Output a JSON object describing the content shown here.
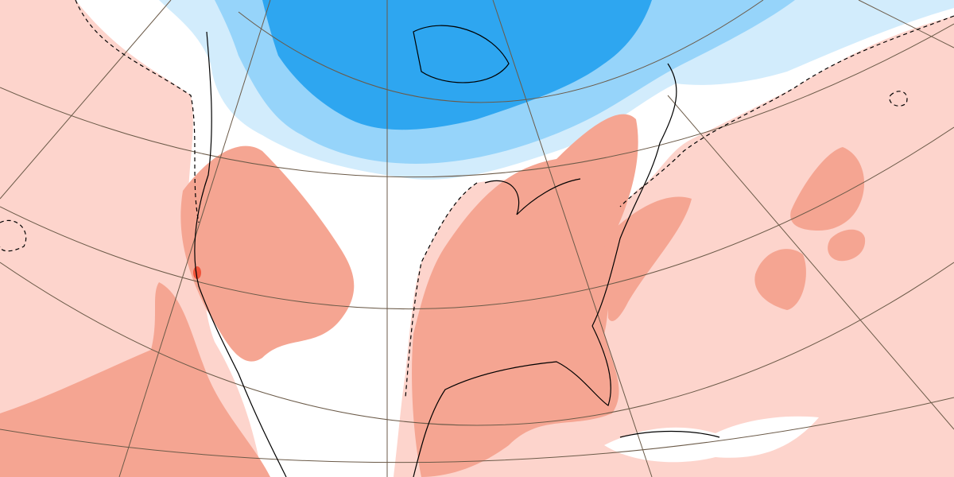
{
  "map": {
    "type": "temperature-anomaly-map",
    "projection": "polar-stereographic",
    "region": "North America",
    "colors": {
      "background": "#fdd4cc",
      "neutral": "#ffffff",
      "warm_light": "#fdd4cc",
      "warm_medium": "#f5a592",
      "warm_strong": "#f0533a",
      "cold_light": "#d2ecfc",
      "cold_medium": "#96d4fa",
      "cold_strong": "#2ea6f0",
      "coastline": "#000000",
      "gridline": "#6b5a48"
    }
  }
}
